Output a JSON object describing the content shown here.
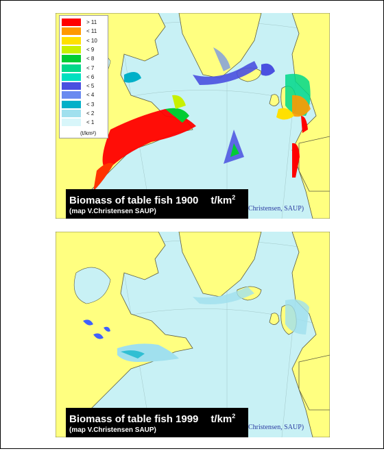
{
  "colors": {
    "ocean": "#c8f1f5",
    "land": "#ffff80",
    "coast": "#5a5a40"
  },
  "legend": {
    "unit": "(t/km²)",
    "items": [
      {
        "label": "> 11",
        "color": "#ff0000"
      },
      {
        "label": "< 11",
        "color": "#ff9900"
      },
      {
        "label": "< 10",
        "color": "#ffe000"
      },
      {
        "label": "< 9",
        "color": "#c8f000"
      },
      {
        "label": "< 8",
        "color": "#00cc33"
      },
      {
        "label": "< 7",
        "color": "#00d88a"
      },
      {
        "label": "< 6",
        "color": "#00e0c0"
      },
      {
        "label": "< 5",
        "color": "#4a50e0"
      },
      {
        "label": "< 4",
        "color": "#6a8af0"
      },
      {
        "label": "< 3",
        "color": "#00b0c8"
      },
      {
        "label": "< 2",
        "color": "#a0e0ee"
      },
      {
        "label": "< 1",
        "color": "#d8f6fa"
      }
    ]
  },
  "maps": [
    {
      "year": "1900",
      "title": "Biomass of table fish 1900",
      "unit": "t/km",
      "unit_exp": "2",
      "credit": "(map V.Christensen SAUP)",
      "stamp": "Christensen, SAUP)"
    },
    {
      "year": "1999",
      "title": "Biomass of table fish 1999",
      "unit": "t/km",
      "unit_exp": "2",
      "credit": "(map V.Christensen SAUP)",
      "stamp": "Christensen, SAUP)"
    }
  ]
}
